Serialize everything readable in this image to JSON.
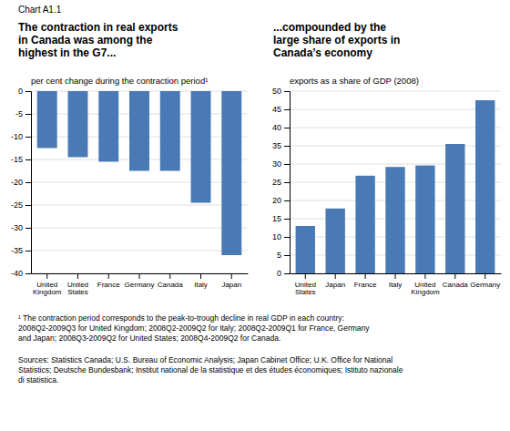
{
  "title": "Chart A1.1",
  "footnotes": [
    "¹ The contraction period corresponds to the peak-to-trough decline in real GDP in each country:\n2008Q2-2009Q3 for United Kingdom; 2008Q2-2009Q2 for Italy; 2008Q2-2009Q1 for France, Germany\nand Japan; 2008Q3-2009Q2 for United States; 2008Q4-2009Q2 for Canada.",
    "Sources: Statistics Canada; U.S. Bureau of Economic Analysis; Japan Cabinet Office; U.K. Office for National\nStatistics; Deutsche Bundesbank; Institut national de la statistique et des études économiques; Istituto nazionale\ndi statistica."
  ],
  "chart_data": [
    {
      "type": "bar",
      "title": "The contraction in real exports\nin Canada was among the\nhighest in the G7...",
      "ylabel": "per cent change during the contraction period¹",
      "categories": [
        "United\nKingdom",
        "United\nStates",
        "France",
        "Germany",
        "Canada",
        "Italy",
        "Japan"
      ],
      "values": [
        -12.5,
        -14.5,
        -15.5,
        -17.5,
        -17.5,
        -24.5,
        -36.0
      ],
      "color": "#4a7ab5",
      "ylim": [
        -40,
        0
      ],
      "yticks": [
        0,
        -5,
        -10,
        -15,
        -20,
        -25,
        -30,
        -35,
        -40
      ],
      "grid": true
    },
    {
      "type": "bar",
      "title": "...compounded by the\nlarge share of exports in\nCanada’s economy",
      "ylabel": "exports as a share of GDP (2008)",
      "categories": [
        "United\nStates",
        "Japan",
        "France",
        "Italy",
        "United\nKingdom",
        "Canada",
        "Germany"
      ],
      "values": [
        13.0,
        17.8,
        26.8,
        29.2,
        29.6,
        35.5,
        47.5
      ],
      "color": "#4a7ab5",
      "ylim": [
        0,
        50
      ],
      "yticks": [
        0,
        5,
        10,
        15,
        20,
        25,
        30,
        35,
        40,
        45,
        50
      ],
      "grid": true
    }
  ]
}
